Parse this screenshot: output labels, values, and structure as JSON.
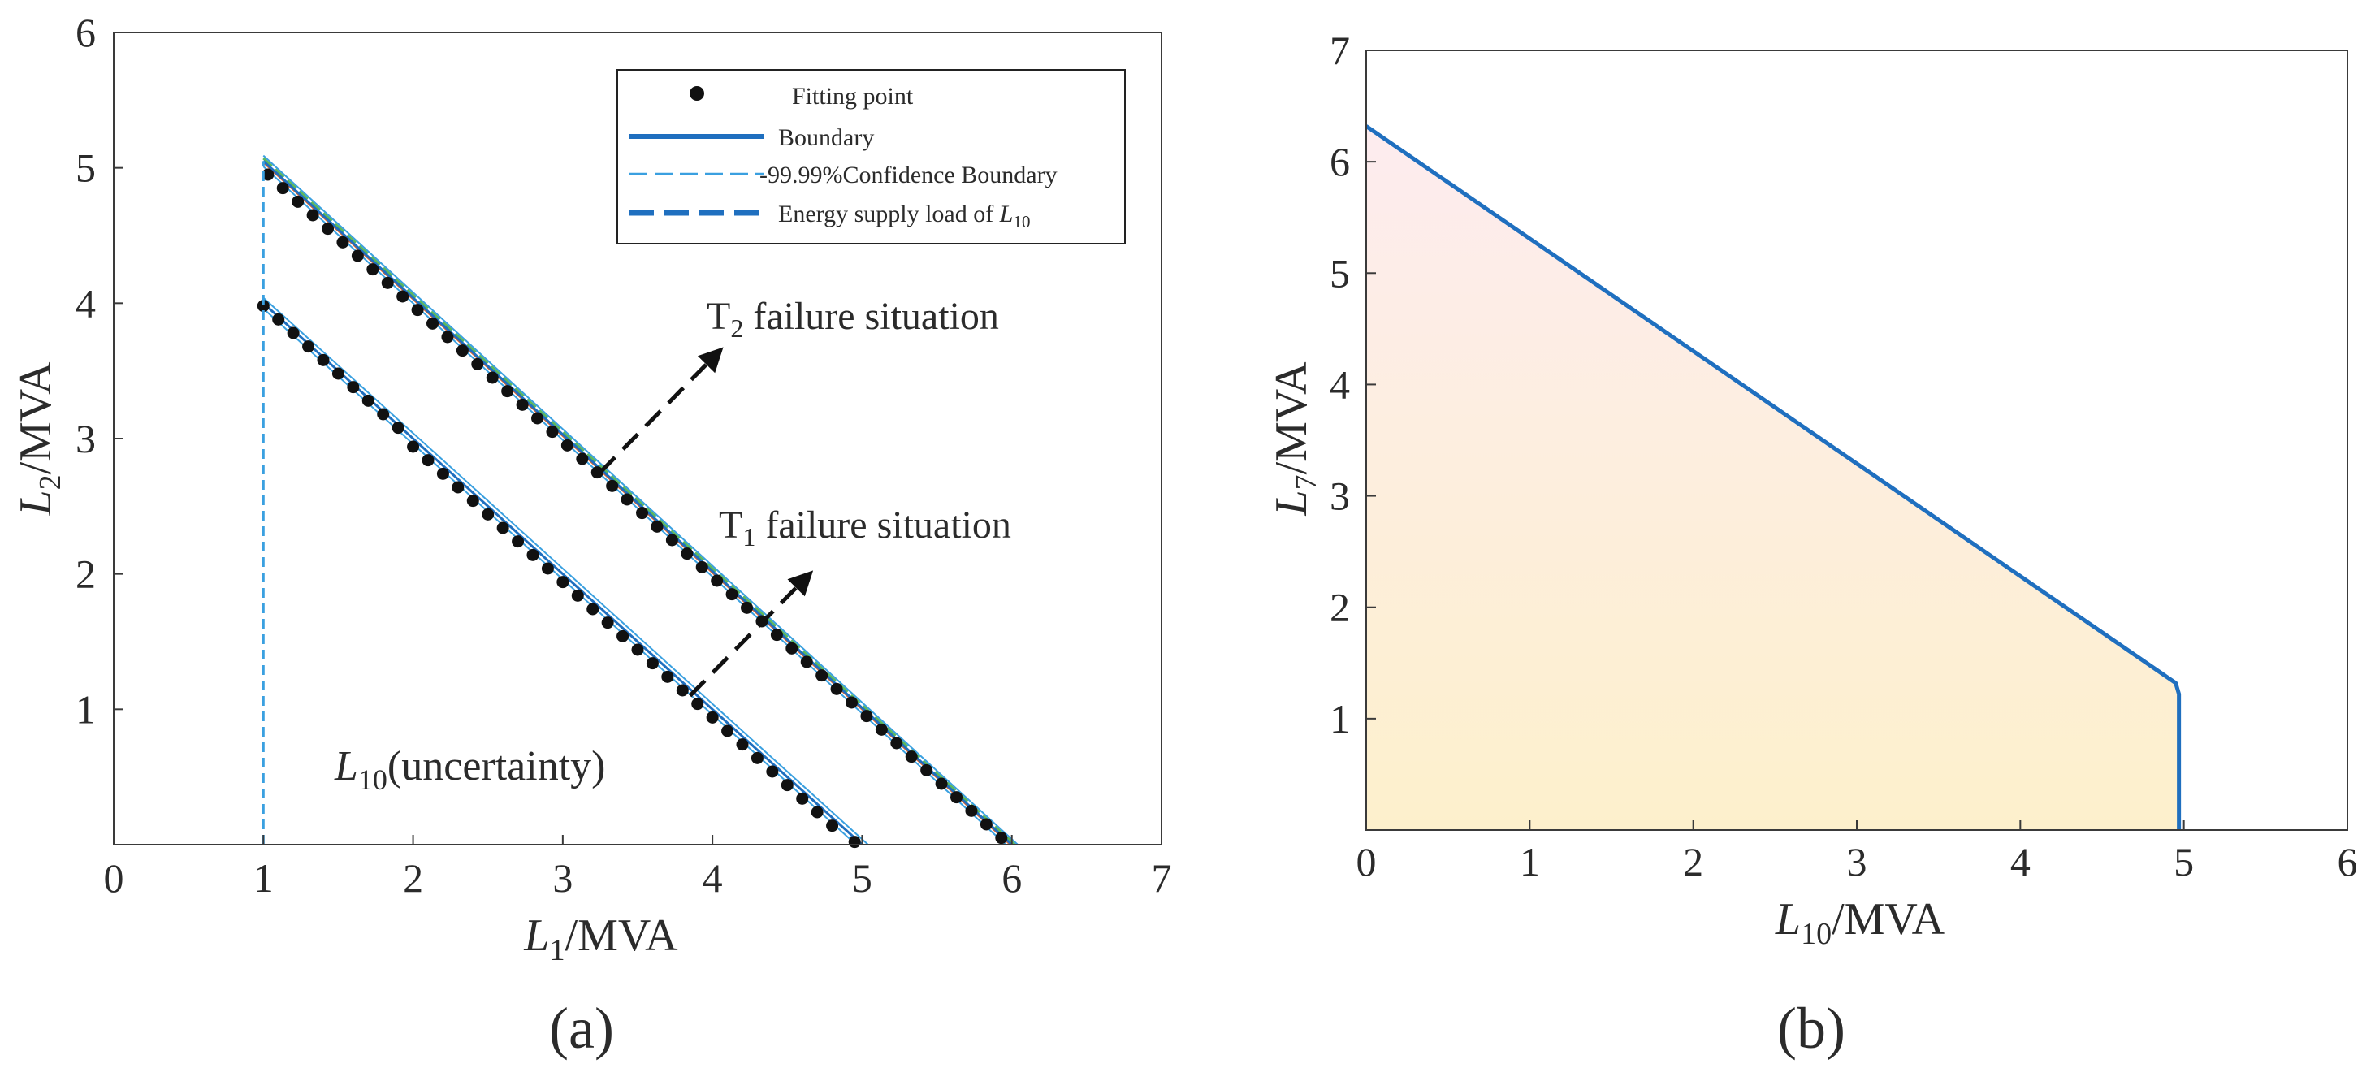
{
  "figure": {
    "panel_a_label": "(a)",
    "panel_b_label": "(b)"
  },
  "chart_data": [
    {
      "panel": "(a)",
      "type": "line",
      "xlabel": {
        "base": "L",
        "sub": "1",
        "unit": "/MVA"
      },
      "ylabel": {
        "base": "L",
        "sub": "2",
        "unit": "/MVA"
      },
      "xlim": [
        0,
        7
      ],
      "ylim": [
        0,
        6
      ],
      "xticks": [
        "0",
        "1",
        "2",
        "3",
        "4",
        "5",
        "6",
        "7"
      ],
      "yticks": [
        "1",
        "2",
        "3",
        "4",
        "5",
        "6"
      ],
      "grid": false,
      "legend_position": "top-right",
      "legend": [
        {
          "label": "Fitting point",
          "style": "marker"
        },
        {
          "label": "Boundary",
          "style": "solid"
        },
        {
          "label": "-99.99%Confidence Boundary",
          "style": "thin-dashed"
        },
        {
          "label": "Energy supply load of ",
          "label_sub_base": "L",
          "label_sub": "10",
          "style": "thick-dashed"
        }
      ],
      "annotations": [
        {
          "base": "T",
          "sub": "2",
          "text": " failure situation",
          "arrow_from": [
            3.25,
            2.75
          ],
          "arrow_to": [
            4.05,
            3.65
          ]
        },
        {
          "base": "T",
          "sub": "1",
          "text": " failure situation",
          "arrow_from": [
            3.85,
            1.1
          ],
          "arrow_to": [
            4.65,
            2.0
          ]
        },
        {
          "base": "L",
          "sub": "10",
          "text": "(uncertainty)"
        }
      ],
      "series": [
        {
          "name": "T2 failure situation",
          "boundary": {
            "x": [
              1,
              6
            ],
            "y": [
              5.05,
              0
            ]
          },
          "confidence_offset": 0.04,
          "points_x": [
            1.03,
            1.13,
            1.23,
            1.33,
            1.43,
            1.53,
            1.63,
            1.73,
            1.83,
            1.93,
            2.03,
            2.13,
            2.23,
            2.33,
            2.43,
            2.53,
            2.63,
            2.73,
            2.83,
            2.93,
            3.03,
            3.13,
            3.23,
            3.33,
            3.43,
            3.53,
            3.63,
            3.73,
            3.83,
            3.93,
            4.03,
            4.13,
            4.23,
            4.33,
            4.43,
            4.53,
            4.63,
            4.73,
            4.83,
            4.93,
            5.03,
            5.13,
            5.23,
            5.33,
            5.43,
            5.53,
            5.63,
            5.73,
            5.83,
            5.93
          ],
          "points_y": [
            4.95,
            4.85,
            4.75,
            4.65,
            4.55,
            4.45,
            4.35,
            4.25,
            4.15,
            4.05,
            3.95,
            3.85,
            3.75,
            3.65,
            3.55,
            3.45,
            3.35,
            3.25,
            3.15,
            3.05,
            2.95,
            2.85,
            2.75,
            2.65,
            2.55,
            2.45,
            2.35,
            2.25,
            2.15,
            2.05,
            1.95,
            1.85,
            1.75,
            1.65,
            1.55,
            1.45,
            1.35,
            1.25,
            1.15,
            1.05,
            0.95,
            0.85,
            0.75,
            0.65,
            0.55,
            0.45,
            0.35,
            0.25,
            0.15,
            0.05
          ]
        },
        {
          "name": "T1 failure situation",
          "boundary": {
            "x": [
              1,
              5
            ],
            "y": [
              4.0,
              0
            ]
          },
          "confidence_offset": 0.04,
          "points_x": [
            1.0,
            1.1,
            1.2,
            1.3,
            1.4,
            1.5,
            1.6,
            1.7,
            1.8,
            1.9,
            2.0,
            2.1,
            2.2,
            2.3,
            2.4,
            2.5,
            2.6,
            2.7,
            2.8,
            2.9,
            3.0,
            3.1,
            3.2,
            3.3,
            3.4,
            3.5,
            3.6,
            3.7,
            3.8,
            3.9,
            4.0,
            4.1,
            4.2,
            4.3,
            4.4,
            4.5,
            4.6,
            4.7,
            4.8,
            4.95
          ],
          "points_y": [
            3.98,
            3.88,
            3.78,
            3.68,
            3.58,
            3.48,
            3.38,
            3.28,
            3.18,
            3.08,
            2.94,
            2.84,
            2.74,
            2.64,
            2.54,
            2.44,
            2.34,
            2.24,
            2.14,
            2.04,
            1.94,
            1.84,
            1.74,
            1.64,
            1.54,
            1.44,
            1.34,
            1.24,
            1.14,
            1.04,
            0.94,
            0.84,
            0.74,
            0.64,
            0.54,
            0.44,
            0.34,
            0.24,
            0.14,
            0.02
          ]
        },
        {
          "name": "Energy supply load of L10",
          "x": [
            1,
            1
          ],
          "y": [
            0,
            5.05
          ]
        }
      ]
    },
    {
      "panel": "(b)",
      "type": "area",
      "xlabel": {
        "base": "L",
        "sub": "10",
        "unit": "/MVA"
      },
      "ylabel": {
        "base": "L",
        "sub": "7",
        "unit": "/MVA"
      },
      "xlim": [
        0,
        6
      ],
      "ylim": [
        0,
        7
      ],
      "xticks": [
        "0",
        "1",
        "2",
        "3",
        "4",
        "5",
        "6"
      ],
      "yticks": [
        "1",
        "2",
        "3",
        "4",
        "5",
        "6",
        "7"
      ],
      "grid": false,
      "series": [
        {
          "x": [
            0,
            4.95,
            4.97,
            4.97
          ],
          "y": [
            6.32,
            1.32,
            1.22,
            0
          ]
        }
      ],
      "colors": {
        "line": "#1f6fbf",
        "fill_top": "#fdecef",
        "fill_bottom": "#fdf0cc"
      }
    }
  ],
  "colors": {
    "axis": "#3a3a3a",
    "boundary": "#1f6fbf",
    "confidence": "#3aa0e0",
    "fit_red": "#e2622a",
    "fit_green": "#5cb85c",
    "points": "#111111",
    "arrow": "#111111"
  }
}
